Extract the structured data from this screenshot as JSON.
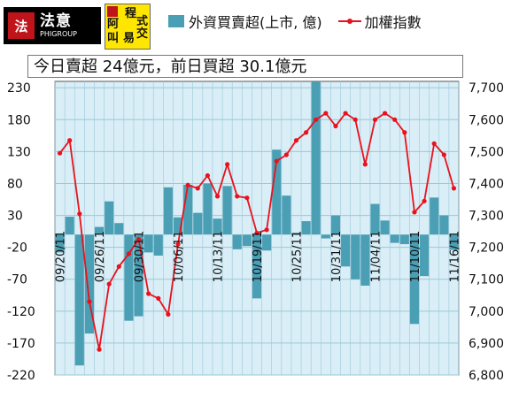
{
  "header": {
    "logo1": {
      "seal": "法",
      "name": "法意",
      "sub": "PHIGROUP"
    },
    "logo2": {
      "seal": "",
      "chars": [
        "阿",
        "程",
        "叫",
        "式",
        "易",
        "交"
      ]
    },
    "legend": {
      "bar_label": "外資買賣超(上市, 億)",
      "line_label": "加權指數"
    }
  },
  "summary": "今日賣超 24億元，前日買超 30.1億元",
  "chart_data": {
    "type": "bar+line",
    "x": [
      "09/20/11",
      "09/21/11",
      "09/22/11",
      "09/23/11",
      "09/26/11",
      "09/27/11",
      "09/28/11",
      "09/29/11",
      "09/30/11",
      "10/03/11",
      "10/04/11",
      "10/05/11",
      "10/06/11",
      "10/07/11",
      "10/11/11",
      "10/12/11",
      "10/13/11",
      "10/14/11",
      "10/17/11",
      "10/18/11",
      "10/19/11",
      "10/20/11",
      "10/21/11",
      "10/24/11",
      "10/25/11",
      "10/26/11",
      "10/27/11",
      "10/28/11",
      "10/31/11",
      "11/01/11",
      "11/02/11",
      "11/03/11",
      "11/04/11",
      "11/07/11",
      "11/08/11",
      "11/09/11",
      "11/10/11",
      "11/11/11",
      "11/14/11",
      "11/15/11",
      "11/16/11"
    ],
    "x_tick_labels": [
      "09/20/11",
      "09/26/11",
      "09/30/11",
      "10/06/11",
      "10/13/11",
      "10/19/11",
      "10/25/11",
      "10/31/11",
      "11/04/11",
      "11/10/11",
      "11/16/11"
    ],
    "series": [
      {
        "name": "外資買賣超(上市, 億)",
        "type": "bar",
        "axis": "left",
        "color": "#4a9fb5",
        "values": [
          -28,
          28,
          -205,
          -155,
          12,
          52,
          18,
          -135,
          -128,
          -28,
          -33,
          74,
          27,
          78,
          34,
          80,
          25,
          76,
          -23,
          -18,
          -100,
          -25,
          133,
          61,
          3,
          21,
          239,
          -6,
          30,
          -50,
          -70,
          -80,
          48,
          22,
          -13,
          -15,
          -140,
          -65,
          58,
          30,
          -24
        ]
      },
      {
        "name": "加權指數",
        "type": "line",
        "axis": "right",
        "color": "#e8121d",
        "values": [
          7495,
          7535,
          7305,
          7030,
          6880,
          7085,
          7140,
          7180,
          7225,
          7055,
          7040,
          6990,
          7210,
          7395,
          7385,
          7425,
          7360,
          7460,
          7360,
          7355,
          7245,
          7255,
          7470,
          7490,
          7535,
          7560,
          7600,
          7620,
          7580,
          7620,
          7600,
          7460,
          7600,
          7620,
          7600,
          7560,
          7310,
          7345,
          7525,
          7490,
          7385
        ]
      }
    ],
    "left_axis": {
      "ticks": [
        "230",
        "180",
        "130",
        "80",
        "30",
        "-20",
        "-70",
        "-120",
        "-170",
        "-220"
      ],
      "ylim": [
        -220,
        240
      ]
    },
    "right_axis": {
      "ticks": [
        "7,700",
        "7,600",
        "7,500",
        "7,400",
        "7,300",
        "7,200",
        "7,100",
        "7,000",
        "6,900",
        "6,800"
      ],
      "ylim": [
        6800,
        7700
      ]
    },
    "colors": {
      "plot_bg": "#d9eef7",
      "grid": "#9cc8d6",
      "bar": "#4a9fb5",
      "line": "#e8121d"
    }
  }
}
